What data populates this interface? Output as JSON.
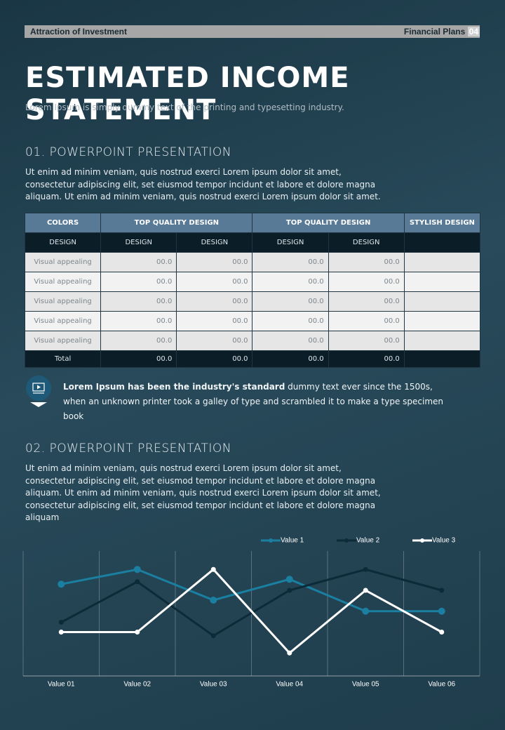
{
  "header": {
    "left": "Attraction  of Investment",
    "right": "Financial Plans",
    "page": "04"
  },
  "title": "ESTIMATED INCOME STATEMENT",
  "subtitle": "Lorem Ipsum is simply dummy text of the printing and typesetting industry.",
  "section1": {
    "heading": "01.  POWERPOINT PRESENTATION",
    "text": "Ut enim ad minim veniam, quis nostrud exerci  Lorem ipsum dolor sit amet, consectetur adipiscing elit, set eiusmod tempor incidunt et labore et dolore magna aliquam. Ut enim ad minim veniam, quis nostrud exerci  Lorem ipsum dolor sit amet."
  },
  "table": {
    "header": [
      "COLORS",
      "TOP QUALITY DESIGN",
      "TOP QUALITY DESIGN",
      "STYLISH DESIGN"
    ],
    "subheader": [
      "DESIGN",
      "DESIGN",
      "DESIGN",
      "DESIGN",
      "DESIGN"
    ],
    "rows": [
      [
        "Visual appealing",
        "00.0",
        "00.0",
        "00.0",
        "00.0"
      ],
      [
        "Visual appealing",
        "00.0",
        "00.0",
        "00.0",
        "00.0"
      ],
      [
        "Visual appealing",
        "00.0",
        "00.0",
        "00.0",
        "00.0"
      ],
      [
        "Visual appealing",
        "00.0",
        "00.0",
        "00.0",
        "00.0"
      ],
      [
        "Visual appealing",
        "00.0",
        "00.0",
        "00.0",
        "00.0"
      ]
    ],
    "total": [
      "Total",
      "00.0",
      "00.0",
      "00.0",
      "00.0"
    ]
  },
  "callout": {
    "bold": "Lorem Ipsum has been the industry's standard",
    "text": " dummy text ever since the 1500s, when an unknown printer took a galley of type and scrambled it to make a type specimen book"
  },
  "section2": {
    "heading": "02.  POWERPOINT PRESENTATION",
    "text": "Ut enim ad minim veniam, quis nostrud exerci  Lorem ipsum dolor sit amet, consectetur adipiscing elit, set eiusmod tempor incidunt et labore et dolore magna aliquam. Ut enim ad minim veniam, quis nostrud exerci  Lorem ipsum dolor sit amet, consectetur adipiscing elit, set eiusmod tempor incidunt et labore et dolore magna aliquam"
  },
  "chart_data": {
    "type": "line",
    "categories": [
      "Value 01",
      "Value 02",
      "Value 03",
      "Value 04",
      "Value 05",
      "Value 06"
    ],
    "ylim": [
      0,
      10
    ],
    "series": [
      {
        "name": "Value 1",
        "color": "#1a7fa0",
        "values": [
          7.3,
          8.5,
          6.0,
          7.7,
          5.1,
          5.1
        ]
      },
      {
        "name": "Value 2",
        "color": "#0d2a38",
        "values": [
          4.2,
          7.5,
          3.1,
          6.8,
          8.5,
          6.8
        ]
      },
      {
        "name": "Value 3",
        "color": "#ffffff",
        "values": [
          3.4,
          3.4,
          8.5,
          1.7,
          6.8,
          3.4
        ]
      }
    ]
  }
}
